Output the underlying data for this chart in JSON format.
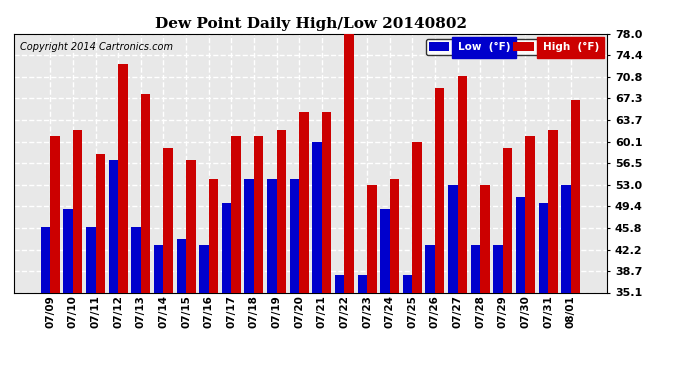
{
  "title": "Dew Point Daily High/Low 20140802",
  "copyright": "Copyright 2014 Cartronics.com",
  "dates": [
    "07/09",
    "07/10",
    "07/11",
    "07/12",
    "07/13",
    "07/14",
    "07/15",
    "07/16",
    "07/17",
    "07/18",
    "07/19",
    "07/20",
    "07/21",
    "07/22",
    "07/23",
    "07/24",
    "07/25",
    "07/26",
    "07/27",
    "07/28",
    "07/29",
    "07/30",
    "07/31",
    "08/01"
  ],
  "low_values": [
    46,
    49,
    46,
    57,
    46,
    43,
    44,
    43,
    50,
    54,
    54,
    54,
    60,
    38,
    38,
    49,
    38,
    43,
    53,
    43,
    43,
    51,
    50,
    53
  ],
  "high_values": [
    61,
    62,
    58,
    73,
    68,
    59,
    57,
    54,
    61,
    61,
    62,
    65,
    65,
    78,
    53,
    54,
    60,
    69,
    71,
    53,
    59,
    61,
    62,
    67
  ],
  "low_color": "#0000cc",
  "high_color": "#cc0000",
  "background_color": "#ffffff",
  "plot_bg_color": "#e8e8e8",
  "grid_color": "#ffffff",
  "ylim_min": 35.1,
  "ylim_max": 78.0,
  "yticks": [
    35.1,
    38.7,
    42.2,
    45.8,
    49.4,
    53.0,
    56.5,
    60.1,
    63.7,
    67.3,
    70.8,
    74.4,
    78.0
  ],
  "bar_width": 0.42,
  "legend_low_label": "Low  (°F)",
  "legend_high_label": "High  (°F)"
}
